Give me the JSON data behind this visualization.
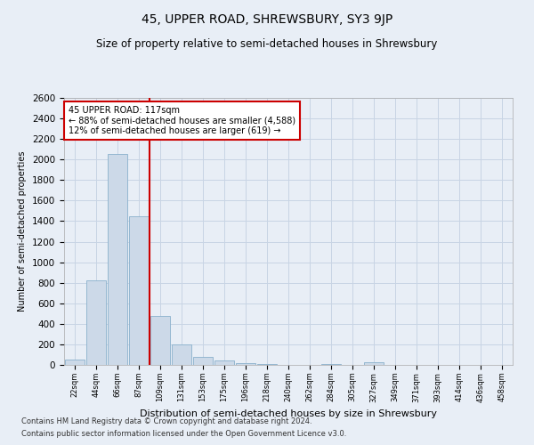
{
  "title": "45, UPPER ROAD, SHREWSBURY, SY3 9JP",
  "subtitle": "Size of property relative to semi-detached houses in Shrewsbury",
  "xlabel": "Distribution of semi-detached houses by size in Shrewsbury",
  "ylabel": "Number of semi-detached properties",
  "footer1": "Contains HM Land Registry data © Crown copyright and database right 2024.",
  "footer2": "Contains public sector information licensed under the Open Government Licence v3.0.",
  "annotation_title": "45 UPPER ROAD: 117sqm",
  "annotation_line1": "← 88% of semi-detached houses are smaller (4,588)",
  "annotation_line2": "12% of semi-detached houses are larger (619) →",
  "bar_categories": [
    "22sqm",
    "44sqm",
    "66sqm",
    "87sqm",
    "109sqm",
    "131sqm",
    "153sqm",
    "175sqm",
    "196sqm",
    "218sqm",
    "240sqm",
    "262sqm",
    "284sqm",
    "305sqm",
    "327sqm",
    "349sqm",
    "371sqm",
    "393sqm",
    "414sqm",
    "436sqm",
    "458sqm"
  ],
  "bar_values": [
    50,
    820,
    2050,
    1450,
    480,
    200,
    80,
    40,
    20,
    5,
    0,
    0,
    5,
    0,
    30,
    0,
    0,
    0,
    0,
    0,
    0
  ],
  "bar_color": "#ccd9e8",
  "bar_edge_color": "#8ab0cc",
  "vline_color": "#cc0000",
  "vline_x": 3.5,
  "ylim": [
    0,
    2600
  ],
  "yticks": [
    0,
    200,
    400,
    600,
    800,
    1000,
    1200,
    1400,
    1600,
    1800,
    2000,
    2200,
    2400,
    2600
  ],
  "grid_color": "#c8d4e4",
  "annotation_box_facecolor": "#ffffff",
  "annotation_box_edgecolor": "#cc0000",
  "background_color": "#e8eef6",
  "title_fontsize": 10,
  "subtitle_fontsize": 8.5,
  "xlabel_fontsize": 8,
  "ylabel_fontsize": 7,
  "ytick_fontsize": 7.5,
  "xtick_fontsize": 6,
  "annotation_fontsize": 7,
  "footer_fontsize": 6
}
